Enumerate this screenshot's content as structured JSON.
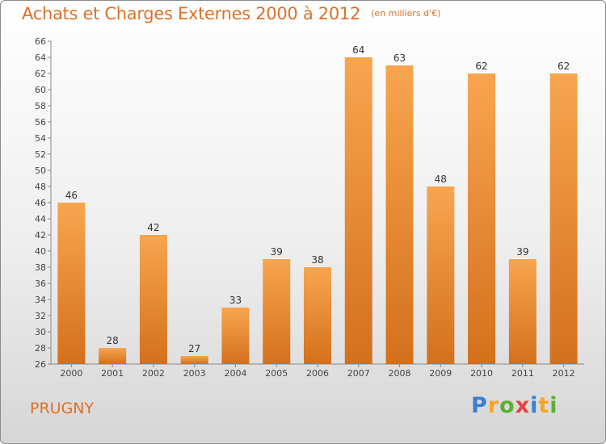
{
  "title": "Achats et Charges Externes 2000 à 2012",
  "unit": "(en milliers d'€)",
  "commune": "PRUGNY",
  "logo": {
    "letters": [
      "P",
      "r",
      "o",
      "x",
      "i",
      "t",
      "i"
    ],
    "colors": [
      "#3a7fd0",
      "#f5a623",
      "#5cb030",
      "#e84040",
      "#3a7fd0",
      "#f5a623",
      "#5cb030"
    ]
  },
  "colors": {
    "accent": "#e07026",
    "bar_light": "#f8a54f",
    "bar_dark": "#d4701c"
  },
  "chart_data": {
    "type": "bar",
    "title": "Achats et Charges Externes 2000 à 2012",
    "categories": [
      "2000",
      "2001",
      "2002",
      "2003",
      "2004",
      "2005",
      "2006",
      "2007",
      "2008",
      "2009",
      "2010",
      "2011",
      "2012"
    ],
    "values": [
      46,
      28,
      42,
      27,
      33,
      39,
      38,
      64,
      63,
      48,
      62,
      39,
      62
    ],
    "xlabel": "",
    "ylabel": "",
    "ylim": [
      26,
      66
    ],
    "yticks": [
      26,
      28,
      30,
      32,
      34,
      36,
      38,
      40,
      42,
      44,
      46,
      48,
      50,
      52,
      54,
      56,
      58,
      60,
      62,
      64,
      66
    ],
    "grid": false,
    "legend": "none"
  }
}
